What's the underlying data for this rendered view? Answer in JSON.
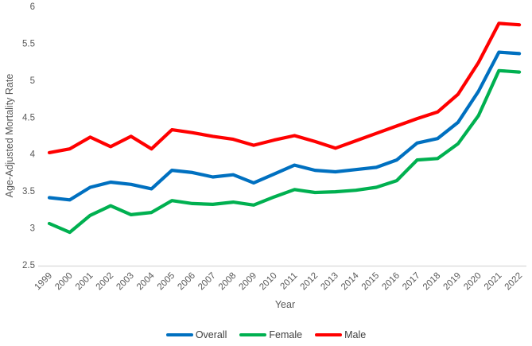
{
  "chart_data": {
    "type": "line",
    "title": "",
    "xlabel": "Year",
    "ylabel": "Age-Adjusted Mortality Rate",
    "x": [
      1999,
      2000,
      2001,
      2002,
      2003,
      2004,
      2005,
      2006,
      2007,
      2008,
      2009,
      2010,
      2011,
      2012,
      2013,
      2014,
      2015,
      2016,
      2017,
      2018,
      2019,
      2020,
      2021,
      2022
    ],
    "series": [
      {
        "name": "Overall",
        "color": "#0070C0",
        "values": [
          3.41,
          3.38,
          3.55,
          3.62,
          3.59,
          3.53,
          3.78,
          3.75,
          3.69,
          3.72,
          3.61,
          3.73,
          3.85,
          3.78,
          3.76,
          3.79,
          3.82,
          3.92,
          4.15,
          4.21,
          4.43,
          4.85,
          5.38,
          5.36
        ]
      },
      {
        "name": "Female",
        "color": "#00B050",
        "values": [
          3.06,
          2.94,
          3.17,
          3.3,
          3.18,
          3.21,
          3.37,
          3.33,
          3.32,
          3.35,
          3.31,
          3.42,
          3.52,
          3.48,
          3.49,
          3.51,
          3.55,
          3.64,
          3.92,
          3.94,
          4.14,
          4.52,
          5.13,
          5.11
        ]
      },
      {
        "name": "Male",
        "color": "#FF0000",
        "values": [
          4.02,
          4.07,
          4.23,
          4.1,
          4.24,
          4.07,
          4.33,
          4.29,
          4.24,
          4.2,
          4.12,
          4.19,
          4.25,
          4.17,
          4.08,
          4.18,
          4.28,
          4.38,
          4.48,
          4.57,
          4.81,
          5.24,
          5.77,
          5.75
        ]
      }
    ],
    "ylim": [
      2.5,
      6
    ],
    "y_tick_labels": [
      "2.5",
      "3",
      "3.5",
      "4",
      "4.5",
      "5",
      "5.5",
      "6"
    ],
    "grid": "off",
    "legend_position": "bottom",
    "axis_line_color": "#D9D9D9",
    "tick_text_color": "#595959"
  }
}
